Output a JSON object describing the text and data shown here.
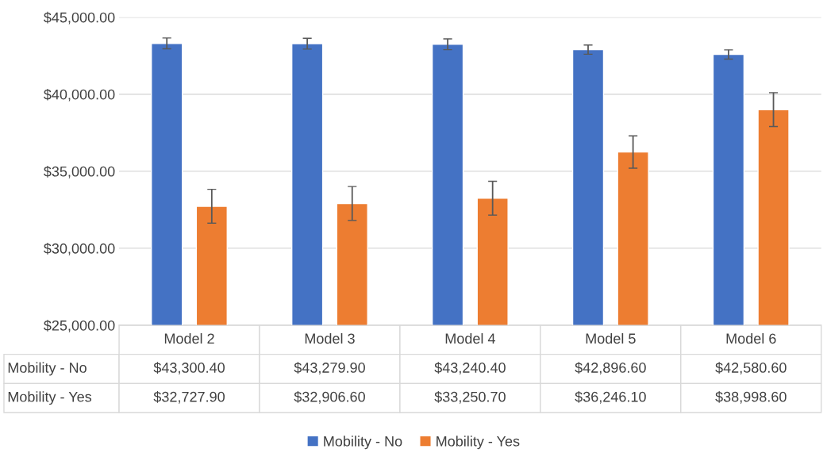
{
  "chart_data": {
    "type": "bar",
    "categories": [
      "Model 2",
      "Model 3",
      "Model 4",
      "Model 5",
      "Model 6"
    ],
    "series": [
      {
        "name": "Mobility - No",
        "color": "#4472c4",
        "values": [
          43300.4,
          43279.9,
          43240.4,
          42896.6,
          42580.6
        ],
        "value_labels": [
          "$43,300.40",
          "$43,279.90",
          "$43,240.40",
          "$42,896.60",
          "$42,580.60"
        ],
        "errors": [
          350,
          350,
          350,
          300,
          300
        ]
      },
      {
        "name": "Mobility - Yes",
        "color": "#ed7d31",
        "values": [
          32727.9,
          32906.6,
          33250.7,
          36246.1,
          38998.6
        ],
        "value_labels": [
          "$32,727.90",
          "$32,906.60",
          "$33,250.70",
          "$36,246.10",
          "$38,998.60"
        ],
        "errors": [
          1100,
          1100,
          1100,
          1050,
          1100
        ]
      }
    ],
    "ylim": [
      25000,
      45000
    ],
    "yticks": [
      {
        "value": 25000,
        "label": "$25,000.00"
      },
      {
        "value": 30000,
        "label": "$30,000.00"
      },
      {
        "value": 35000,
        "label": "$35,000.00"
      },
      {
        "value": 40000,
        "label": "$40,000.00"
      },
      {
        "value": 45000,
        "label": "$45,000.00"
      }
    ],
    "grid": "y",
    "legend": "bottom"
  }
}
